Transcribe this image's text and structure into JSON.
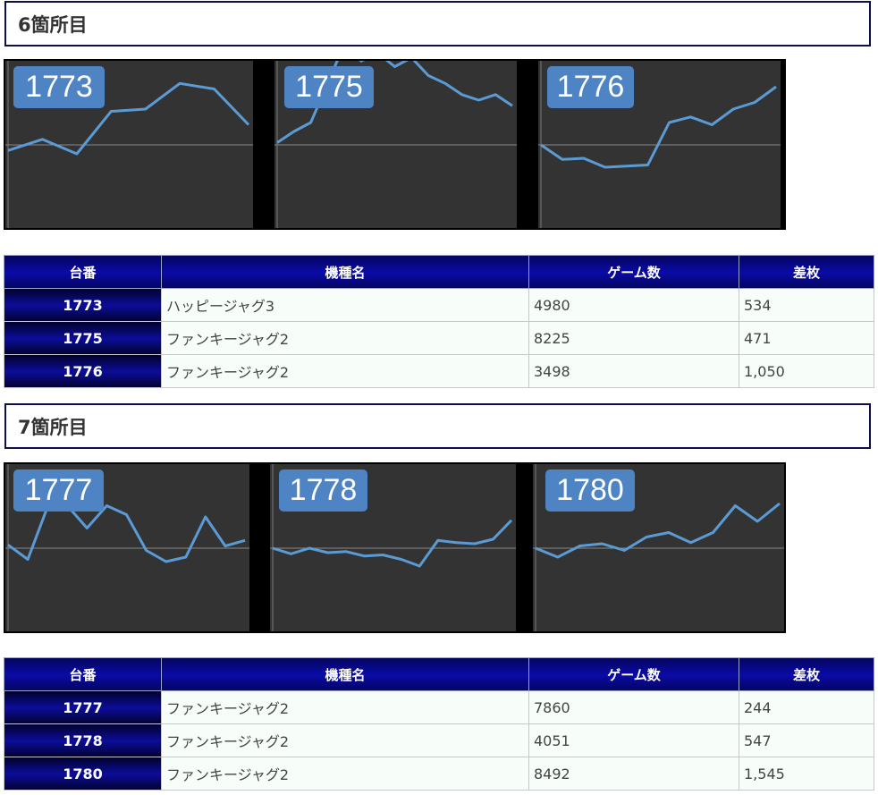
{
  "sections": [
    {
      "title": "6箇所目",
      "charts": [
        {
          "label": "1773",
          "series": [
            -0.05,
            0.05,
            -0.08,
            0.3,
            0.32,
            0.55,
            0.5,
            0.18
          ]
        },
        {
          "label": "1775",
          "series": [
            0.02,
            0.12,
            0.2,
            0.55,
            0.9,
            0.75,
            0.82,
            0.7,
            0.78,
            0.62,
            0.55,
            0.45,
            0.4,
            0.45,
            0.35
          ]
        },
        {
          "label": "1776",
          "series": [
            0.0,
            -0.13,
            -0.12,
            -0.2,
            -0.19,
            -0.18,
            0.2,
            0.25,
            0.18,
            0.32,
            0.38,
            0.52
          ]
        }
      ],
      "table": {
        "headers": [
          "台番",
          "機種名",
          "ゲーム数",
          "差枚"
        ],
        "rows": [
          [
            "1773",
            "ハッピージャグ3",
            "4980",
            "534"
          ],
          [
            "1775",
            "ファンキージャグ2",
            "8225",
            "471"
          ],
          [
            "1776",
            "ファンキージャグ2",
            "3498",
            "1,050"
          ]
        ]
      }
    },
    {
      "title": "7箇所目",
      "charts": [
        {
          "label": "1777",
          "series": [
            0.03,
            -0.1,
            0.37,
            0.38,
            0.18,
            0.38,
            0.3,
            -0.02,
            -0.12,
            -0.08,
            0.28,
            0.02,
            0.07
          ]
        },
        {
          "label": "1778",
          "series": [
            0.0,
            -0.05,
            0.0,
            -0.04,
            -0.03,
            -0.07,
            -0.06,
            -0.1,
            -0.16,
            0.07,
            0.05,
            0.04,
            0.08,
            0.25
          ]
        },
        {
          "label": "1780",
          "series": [
            0.0,
            -0.08,
            0.02,
            0.04,
            -0.02,
            0.1,
            0.14,
            0.05,
            0.14,
            0.38,
            0.24,
            0.4
          ]
        }
      ],
      "table": {
        "headers": [
          "台番",
          "機種名",
          "ゲーム数",
          "差枚"
        ],
        "rows": [
          [
            "1777",
            "ファンキージャグ2",
            "7860",
            "244"
          ],
          [
            "1778",
            "ファンキージャグ2",
            "4051",
            "547"
          ],
          [
            "1780",
            "ファンキージャグ2",
            "8492",
            "1,545"
          ]
        ]
      }
    }
  ],
  "colors": {
    "line": "#5b9bd5",
    "panel_bg": "#333333",
    "badge_bg": "#4f84c4",
    "header_navy": "#0a0aa8"
  }
}
